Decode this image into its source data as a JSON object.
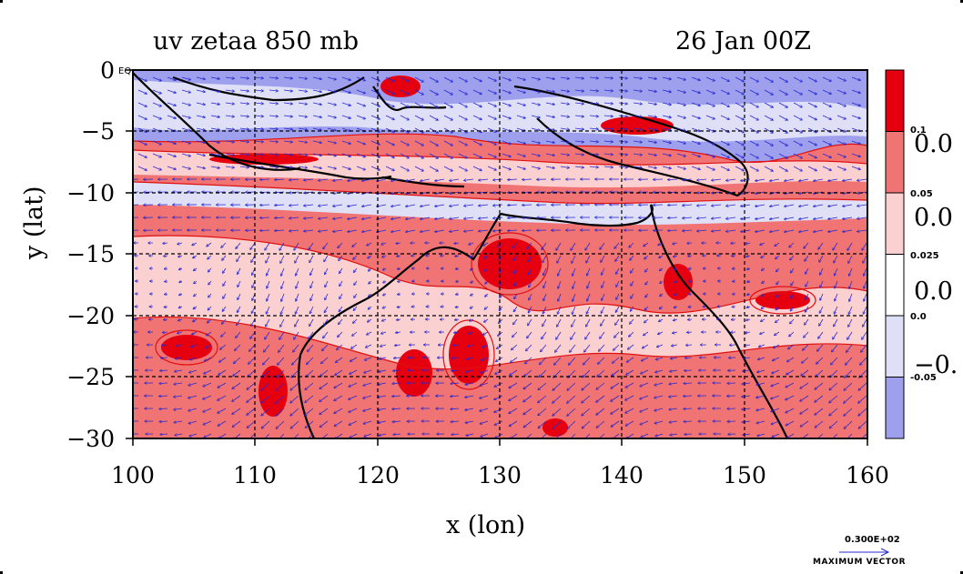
{
  "title": {
    "left": "uv zetaa 850 mb",
    "right": "26 Jan 00Z"
  },
  "axes": {
    "xlabel": "x (lon)",
    "ylabel": "y (lat)",
    "xticks": [
      "100",
      "110",
      "120",
      "130",
      "140",
      "150",
      "160"
    ],
    "yticks": [
      "0",
      "−5",
      "−10",
      "−15",
      "−20",
      "−25",
      "−30"
    ],
    "x_range": [
      100,
      160
    ],
    "y_range": [
      -30,
      0
    ],
    "grid": true,
    "equator_label": "EQ"
  },
  "colorbar": {
    "colors": [
      "#e6000f",
      "#f07474",
      "#fbd0d0",
      "#ffffff",
      "#dfe0f8",
      "#9ea0ee"
    ],
    "small_labels": [
      "0.1",
      "0.05",
      "0.025",
      "0.0",
      "-0.05"
    ],
    "big_labels": [
      "0.0",
      "0.0",
      "0.0",
      "−0."
    ]
  },
  "colors": {
    "strong_positive": "#e6000f",
    "positive": "#f07474",
    "weak_positive": "#fbd0d0",
    "negative": "#dfe0f8",
    "strong_negative": "#9ea0ee",
    "contour": "#e01010",
    "vector": "#2828d0",
    "coastline": "#000000"
  },
  "max_vector": {
    "value": "0.300E+02",
    "label": "MAXIMUM VECTOR"
  }
}
